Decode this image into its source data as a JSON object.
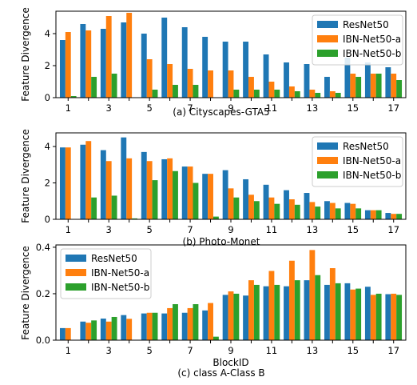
{
  "figure": {
    "colors": [
      "#1f77b4",
      "#ff7f0e",
      "#2ca02c"
    ]
  },
  "chart_data": [
    {
      "type": "bar",
      "caption": "(a) Cityscapes-GTA5",
      "ylabel": "Feature Divergence",
      "xlabel": "",
      "ylim": [
        0,
        5.4
      ],
      "yticks": [
        0,
        2,
        4
      ],
      "categories": [
        1,
        2,
        3,
        4,
        5,
        6,
        7,
        8,
        9,
        10,
        11,
        12,
        13,
        14,
        15,
        16,
        17
      ],
      "xtick_labels": [
        "1",
        "",
        "3",
        "",
        "5",
        "",
        "7",
        "",
        "9",
        "",
        "11",
        "",
        "13",
        "",
        "15",
        "",
        "17"
      ],
      "legend": "top-right",
      "series": [
        {
          "name": "ResNet50",
          "values": [
            3.6,
            4.6,
            4.3,
            4.7,
            4.0,
            5.0,
            4.4,
            3.8,
            3.5,
            3.5,
            2.7,
            2.2,
            2.1,
            1.3,
            2.5,
            2.2,
            1.9
          ]
        },
        {
          "name": "IBN-Net50-a",
          "values": [
            4.1,
            4.2,
            5.1,
            5.3,
            2.4,
            2.1,
            1.8,
            1.7,
            1.7,
            1.3,
            1.0,
            0.7,
            0.5,
            0.4,
            1.5,
            1.5,
            1.5
          ]
        },
        {
          "name": "IBN-Net50-b",
          "values": [
            0.1,
            1.3,
            1.5,
            0.0,
            0.5,
            0.8,
            0.8,
            0.0,
            0.5,
            0.5,
            0.5,
            0.4,
            0.3,
            0.3,
            1.3,
            1.5,
            1.1
          ]
        }
      ]
    },
    {
      "type": "bar",
      "caption": "(b) Photo-Monet",
      "ylabel": "Feature Divergence",
      "xlabel": "",
      "ylim": [
        0,
        4.75
      ],
      "yticks": [
        0,
        2,
        4
      ],
      "categories": [
        1,
        2,
        3,
        4,
        5,
        6,
        7,
        8,
        9,
        10,
        11,
        12,
        13,
        14,
        15,
        16,
        17
      ],
      "xtick_labels": [
        "1",
        "",
        "3",
        "",
        "5",
        "",
        "7",
        "",
        "9",
        "",
        "11",
        "",
        "13",
        "",
        "15",
        "",
        "17"
      ],
      "legend": "top-right",
      "series": [
        {
          "name": "ResNet50",
          "values": [
            3.95,
            4.1,
            3.8,
            4.5,
            3.7,
            3.3,
            2.9,
            2.5,
            2.7,
            2.2,
            1.9,
            1.6,
            1.45,
            1.0,
            0.9,
            0.5,
            0.35
          ]
        },
        {
          "name": "IBN-Net50-a",
          "values": [
            3.95,
            4.3,
            3.2,
            3.35,
            3.2,
            3.35,
            2.9,
            2.5,
            1.7,
            1.35,
            1.2,
            1.1,
            0.95,
            0.9,
            0.85,
            0.5,
            0.3
          ]
        },
        {
          "name": "IBN-Net50-b",
          "values": [
            0.0,
            1.2,
            1.3,
            0.05,
            2.15,
            2.65,
            2.0,
            0.15,
            1.2,
            1.0,
            0.85,
            0.8,
            0.7,
            0.6,
            0.6,
            0.5,
            0.3
          ]
        }
      ]
    },
    {
      "type": "bar",
      "caption": "(c) class A-Class B",
      "ylabel": "Feature Divergence",
      "xlabel": "BlockID",
      "ylim": [
        0,
        0.41
      ],
      "yticks": [
        0.0,
        0.2,
        0.4
      ],
      "ytick_labels": [
        "0.0",
        "0.2",
        "0.4"
      ],
      "categories": [
        1,
        2,
        3,
        4,
        5,
        6,
        7,
        8,
        9,
        10,
        11,
        12,
        13,
        14,
        15,
        16,
        17
      ],
      "xtick_labels": [
        "1",
        "",
        "3",
        "",
        "5",
        "",
        "7",
        "",
        "9",
        "",
        "11",
        "",
        "13",
        "",
        "15",
        "",
        "17"
      ],
      "legend": "top-left",
      "series": [
        {
          "name": "ResNet50",
          "values": [
            0.052,
            0.08,
            0.093,
            0.108,
            0.115,
            0.115,
            0.118,
            0.128,
            0.195,
            0.192,
            0.232,
            0.232,
            0.258,
            0.238,
            0.245,
            0.23,
            0.198
          ]
        },
        {
          "name": "IBN-Net50-a",
          "values": [
            0.052,
            0.075,
            0.08,
            0.092,
            0.118,
            0.138,
            0.138,
            0.16,
            0.21,
            0.258,
            0.298,
            0.342,
            0.388,
            0.31,
            0.218,
            0.195,
            0.2
          ]
        },
        {
          "name": "IBN-Net50-b",
          "values": [
            0.0,
            0.085,
            0.1,
            0.0,
            0.118,
            0.155,
            0.155,
            0.015,
            0.2,
            0.238,
            0.238,
            0.258,
            0.28,
            0.245,
            0.222,
            0.2,
            0.195
          ]
        }
      ]
    }
  ]
}
